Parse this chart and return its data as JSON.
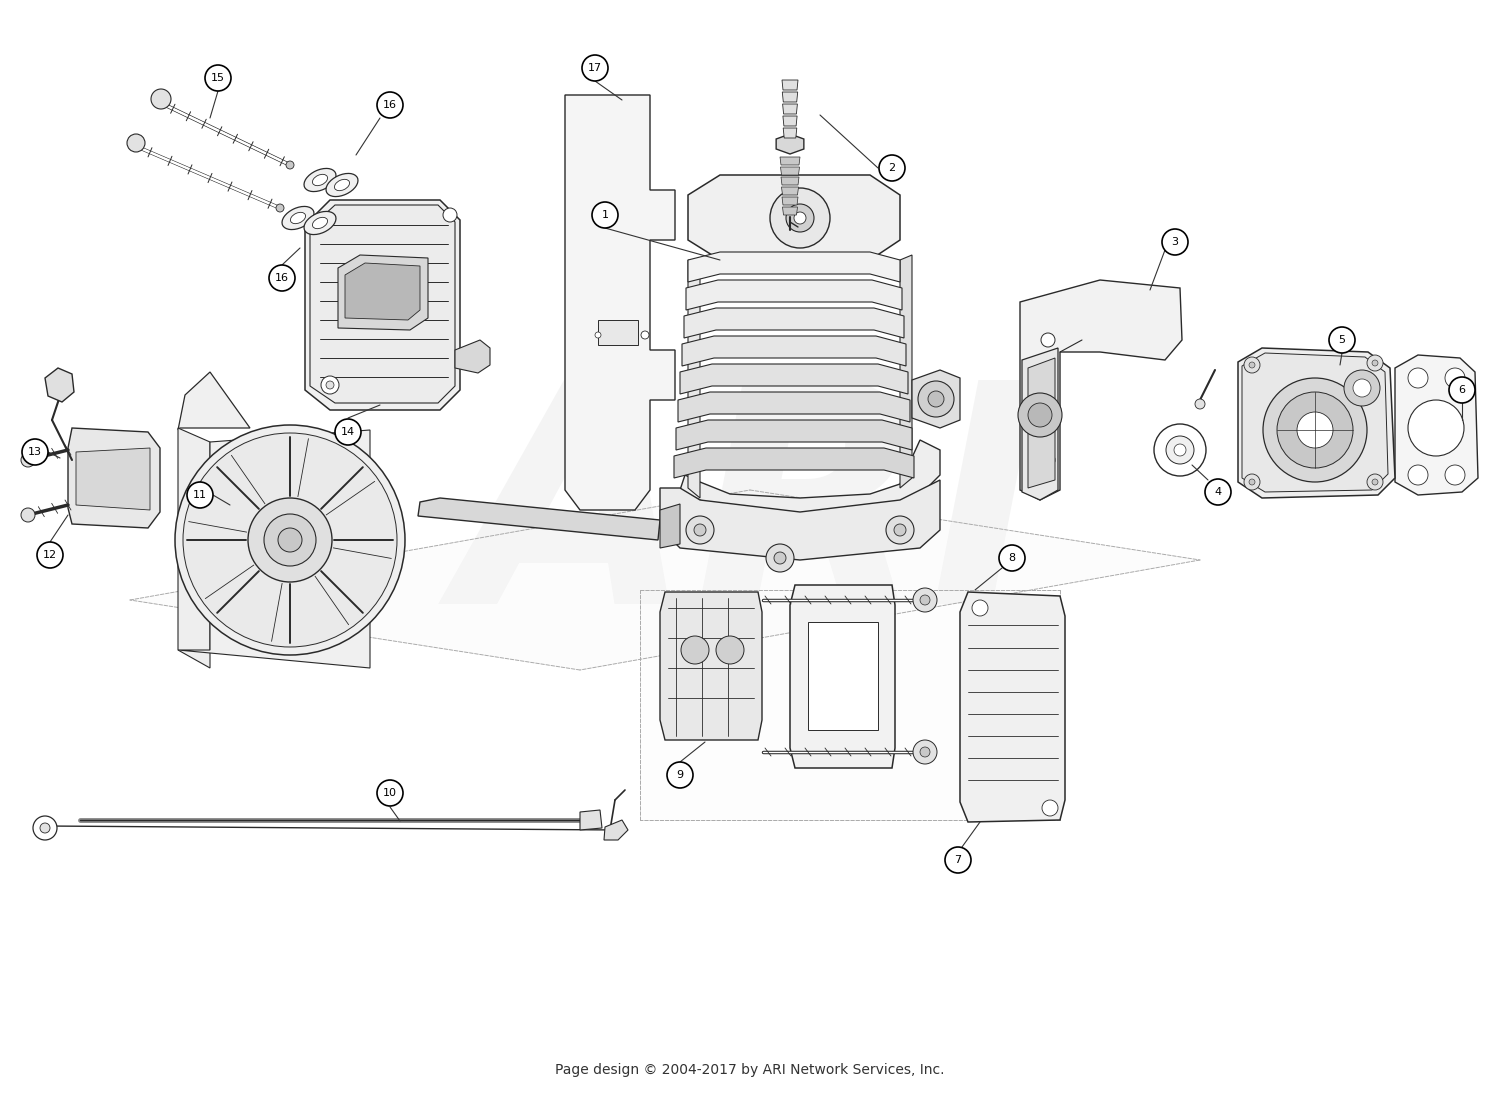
{
  "fig_width": 15.0,
  "fig_height": 10.96,
  "dpi": 100,
  "bg": "#ffffff",
  "lc": "#2a2a2a",
  "lf": "#f4f4f4",
  "mf": "#e2e2e2",
  "df": "#c8c8c8",
  "footer": "Page design © 2004-2017 by ARI Network Services, Inc.",
  "wm": "ARI"
}
